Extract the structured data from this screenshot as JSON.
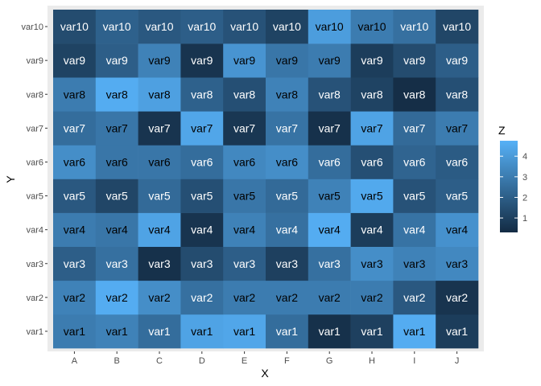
{
  "chart_data": {
    "type": "heatmap",
    "title": "",
    "xlabel": "X",
    "ylabel": "Y",
    "x_categories": [
      "A",
      "B",
      "C",
      "D",
      "E",
      "F",
      "G",
      "H",
      "I",
      "J"
    ],
    "y_categories": [
      "var1",
      "var2",
      "var3",
      "var4",
      "var5",
      "var6",
      "var7",
      "var8",
      "var9",
      "var10"
    ],
    "values": [
      [
        3.0,
        3.2,
        2.5,
        4.3,
        4.4,
        2.5,
        0.5,
        1.0,
        4.6,
        0.9
      ],
      [
        3.2,
        4.6,
        3.6,
        2.6,
        3.0,
        3.0,
        3.0,
        3.0,
        1.8,
        0.6
      ],
      [
        2.0,
        2.6,
        0.5,
        1.4,
        2.0,
        1.0,
        2.6,
        3.6,
        3.2,
        3.4
      ],
      [
        3.0,
        2.8,
        4.3,
        0.6,
        3.2,
        2.6,
        4.6,
        0.9,
        2.7,
        3.7
      ],
      [
        1.8,
        1.2,
        2.4,
        1.5,
        2.8,
        2.4,
        3.2,
        4.5,
        1.6,
        2.0
      ],
      [
        3.6,
        2.8,
        2.8,
        2.5,
        3.4,
        3.6,
        2.5,
        1.5,
        2.2,
        1.9
      ],
      [
        2.5,
        2.8,
        0.6,
        4.4,
        0.7,
        2.7,
        0.5,
        4.3,
        2.4,
        3.0
      ],
      [
        3.0,
        4.6,
        4.2,
        2.1,
        1.5,
        3.2,
        1.6,
        1.1,
        0.4,
        1.5
      ],
      [
        1.1,
        2.0,
        3.2,
        0.6,
        3.8,
        2.8,
        3.0,
        0.9,
        1.4,
        2.0
      ],
      [
        1.4,
        2.1,
        1.8,
        2.0,
        1.6,
        1.1,
        4.1,
        3.0,
        2.6,
        1.2
      ]
    ],
    "color_scale": {
      "low": "#132B43",
      "high": "#56B1F7",
      "min": 0.3,
      "max": 4.75
    },
    "text_colors": {
      "light": "#ffffff",
      "dark": "#000000"
    },
    "legend": {
      "title": "Z",
      "ticks": [
        1,
        2,
        3,
        4
      ],
      "position": "right"
    },
    "panel_background": "#EBEBEB",
    "grid": false
  }
}
